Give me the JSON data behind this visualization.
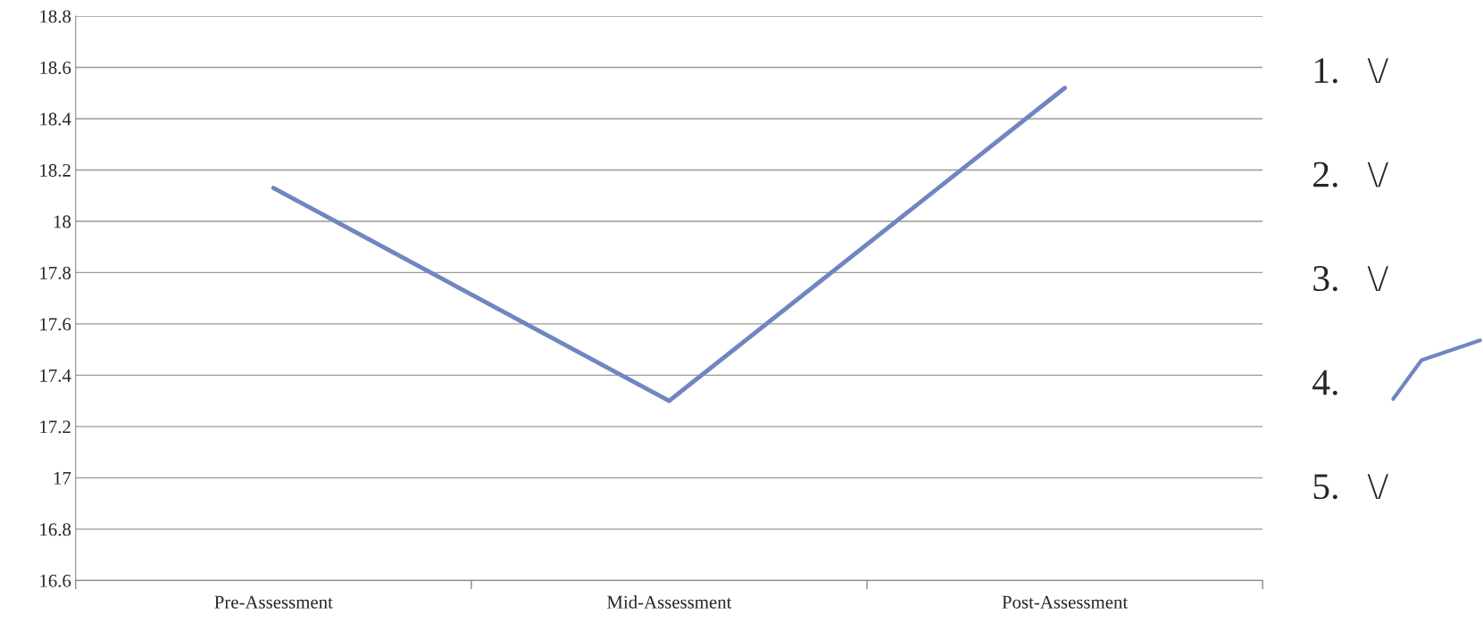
{
  "chart_data": {
    "type": "line",
    "categories": [
      "Pre-Assessment",
      "Mid-Assessment",
      "Post-Assessment"
    ],
    "series": [
      {
        "color": "#6f86c0",
        "values": [
          18.13,
          17.3,
          18.52
        ]
      }
    ],
    "ylim": [
      16.6,
      18.8
    ],
    "yticks": [
      16.6,
      16.8,
      17,
      17.2,
      17.4,
      17.6,
      17.8,
      18,
      18.2,
      18.4,
      18.6,
      18.8
    ],
    "grid": "y",
    "marker": "none",
    "line_style": "solid",
    "annotations": [
      "1.   \\/",
      "2.   \\/",
      "3.   \\/",
      "4.",
      "5.   \\/"
    ]
  }
}
